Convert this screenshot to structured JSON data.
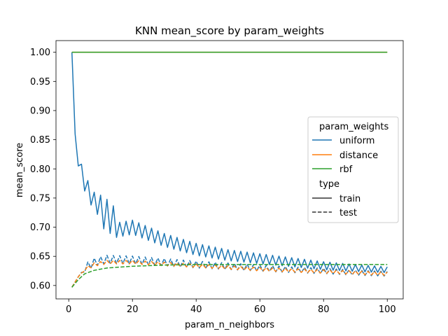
{
  "chart_data": {
    "type": "line",
    "title": "KNN mean_score by param_weights",
    "xlabel": "param_n_neighbors",
    "ylabel": "mean_score",
    "xlim": [
      -4,
      105
    ],
    "ylim": [
      0.577,
      1.02
    ],
    "xticks": [
      0,
      20,
      40,
      60,
      80,
      100
    ],
    "yticks": [
      0.6,
      0.65,
      0.7,
      0.75,
      0.8,
      0.85,
      0.9,
      0.95,
      1.0
    ],
    "grid": false,
    "legend": {
      "placement": "center-right",
      "hue_title": "param_weights",
      "style_title": "type",
      "hue_entries": [
        {
          "label": "uniform",
          "color": "#1f77b4"
        },
        {
          "label": "distance",
          "color": "#ff7f0e"
        },
        {
          "label": "rbf",
          "color": "#2ca02c"
        }
      ],
      "style_entries": [
        {
          "label": "train",
          "dash": "solid"
        },
        {
          "label": "test",
          "dash": "dashed"
        }
      ]
    },
    "x_range": [
      1,
      100
    ],
    "series": [
      {
        "weights": "uniform",
        "type": "train",
        "color": "#1f77b4",
        "dash": "solid",
        "anchors": [
          [
            1,
            1.0
          ],
          [
            2,
            0.86
          ],
          [
            3,
            0.805
          ],
          [
            4,
            0.808
          ],
          [
            5,
            0.762
          ],
          [
            6,
            0.78
          ],
          [
            7,
            0.738
          ],
          [
            8,
            0.76
          ],
          [
            9,
            0.722
          ],
          [
            10,
            0.742
          ],
          [
            11,
            0.71
          ],
          [
            12,
            0.735
          ],
          [
            13,
            0.702
          ],
          [
            14,
            0.724
          ],
          [
            15,
            0.695
          ],
          [
            20,
            0.7
          ],
          [
            30,
            0.678
          ],
          [
            40,
            0.662
          ],
          [
            50,
            0.652
          ],
          [
            60,
            0.646
          ],
          [
            70,
            0.64
          ],
          [
            80,
            0.634
          ],
          [
            90,
            0.63
          ],
          [
            100,
            0.627
          ]
        ],
        "oscillation": {
          "start": 10,
          "amp_start": 0.013,
          "amp_end": 0.005
        }
      },
      {
        "weights": "uniform",
        "type": "test",
        "color": "#1f77b4",
        "dash": "dashed",
        "anchors": [
          [
            1,
            0.597
          ],
          [
            3,
            0.615
          ],
          [
            5,
            0.63
          ],
          [
            8,
            0.64
          ],
          [
            12,
            0.645
          ],
          [
            20,
            0.644
          ],
          [
            30,
            0.64
          ],
          [
            40,
            0.636
          ],
          [
            50,
            0.633
          ],
          [
            60,
            0.63
          ],
          [
            70,
            0.627
          ],
          [
            80,
            0.625
          ],
          [
            90,
            0.622
          ],
          [
            100,
            0.62
          ]
        ],
        "oscillation": {
          "start": 5,
          "amp_start": 0.007,
          "amp_end": 0.004
        }
      },
      {
        "weights": "distance",
        "type": "train",
        "color": "#ff7f0e",
        "dash": "solid",
        "anchors": [
          [
            1,
            1.0
          ],
          [
            100,
            1.0
          ]
        ]
      },
      {
        "weights": "distance",
        "type": "test",
        "color": "#ff7f0e",
        "dash": "dashed",
        "anchors": [
          [
            1,
            0.597
          ],
          [
            3,
            0.615
          ],
          [
            5,
            0.628
          ],
          [
            8,
            0.636
          ],
          [
            12,
            0.64
          ],
          [
            20,
            0.64
          ],
          [
            30,
            0.637
          ],
          [
            40,
            0.634
          ],
          [
            50,
            0.631
          ],
          [
            60,
            0.628
          ],
          [
            70,
            0.626
          ],
          [
            80,
            0.624
          ],
          [
            90,
            0.622
          ],
          [
            100,
            0.62
          ]
        ],
        "oscillation": {
          "start": 5,
          "amp_start": 0.003,
          "amp_end": 0.003
        }
      },
      {
        "weights": "rbf",
        "type": "train",
        "color": "#2ca02c",
        "dash": "solid",
        "anchors": [
          [
            1,
            1.0
          ],
          [
            100,
            1.0
          ]
        ]
      },
      {
        "weights": "rbf",
        "type": "test",
        "color": "#2ca02c",
        "dash": "dashed",
        "anchors": [
          [
            1,
            0.597
          ],
          [
            3,
            0.61
          ],
          [
            5,
            0.62
          ],
          [
            8,
            0.626
          ],
          [
            12,
            0.63
          ],
          [
            20,
            0.633
          ],
          [
            30,
            0.635
          ],
          [
            40,
            0.636
          ],
          [
            50,
            0.636
          ],
          [
            60,
            0.636
          ],
          [
            70,
            0.636
          ],
          [
            80,
            0.636
          ],
          [
            90,
            0.636
          ],
          [
            100,
            0.636
          ]
        ]
      }
    ]
  }
}
